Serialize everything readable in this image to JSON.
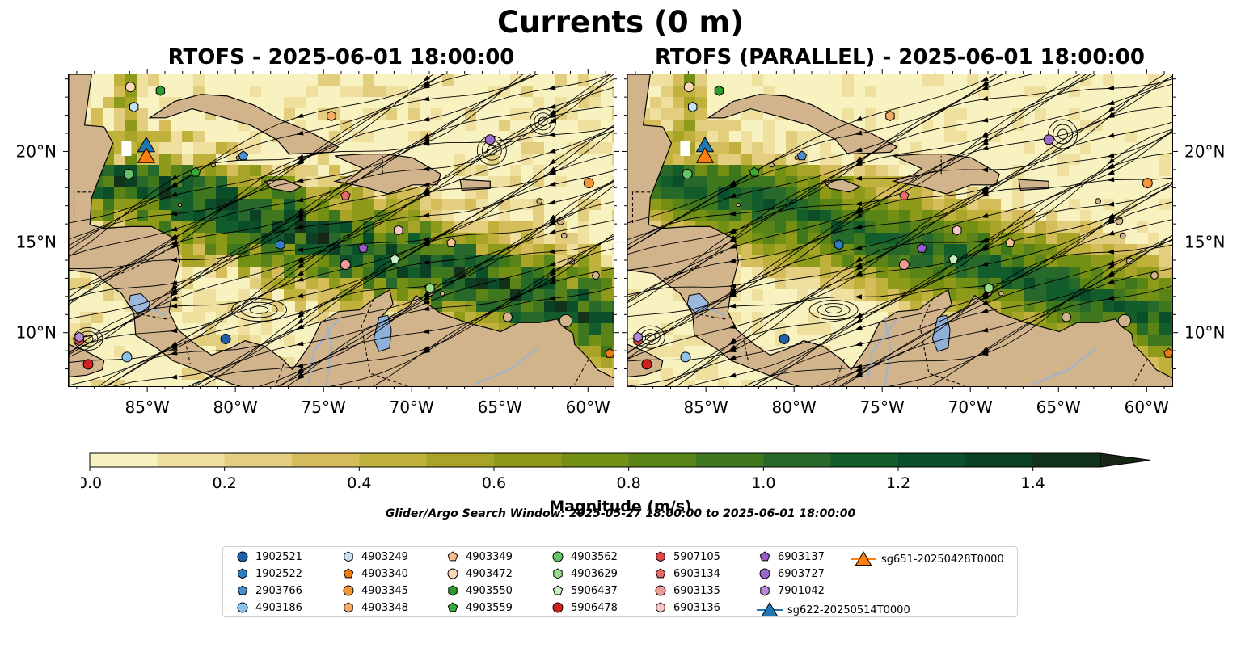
{
  "title": "Currents (0 m)",
  "panels": [
    {
      "title": "RTOFS - 2025-06-01 18:00:00"
    },
    {
      "title": "RTOFS (PARALLEL) - 2025-06-01 18:00:00"
    }
  ],
  "map": {
    "lon_range": [
      -89.5,
      -58.5
    ],
    "lat_range": [
      7.0,
      24.3
    ],
    "lon_ticks": [
      "85°W",
      "80°W",
      "75°W",
      "70°W",
      "65°W",
      "60°W"
    ],
    "lon_tick_values": [
      -85,
      -80,
      -75,
      -70,
      -65,
      -60
    ],
    "lat_ticks": [
      "20°N",
      "15°N",
      "10°N"
    ],
    "lat_tick_values": [
      20,
      15,
      10
    ]
  },
  "colorbar": {
    "label": "Magnitude (m/s)",
    "ticks": [
      "0.0",
      "0.2",
      "0.4",
      "0.6",
      "0.8",
      "1.0",
      "1.2",
      "1.4"
    ],
    "tick_values": [
      0.0,
      0.2,
      0.4,
      0.6,
      0.8,
      1.0,
      1.2,
      1.4
    ],
    "range": [
      0.0,
      1.5
    ],
    "extend": "max",
    "colors": [
      "#f8f1c0",
      "#efe0a0",
      "#e3ce7f",
      "#d4bd5a",
      "#c0b03c",
      "#a8a428",
      "#8e9a1a",
      "#739014",
      "#5a8418",
      "#3f771e",
      "#27692a",
      "#135c2c",
      "#0b4e2a",
      "#0c4024",
      "#12321c",
      "#182616"
    ]
  },
  "search_window": "Glider/Argo Search Window: 2025-05-27 18:00:00 to 2025-06-01 18:00:00",
  "legend": [
    {
      "label": "1902521",
      "marker": "circle",
      "color": "#1f5fa8"
    },
    {
      "label": "1902522",
      "marker": "hexagon",
      "color": "#2f7fc0"
    },
    {
      "label": "2903766",
      "marker": "pentagon",
      "color": "#4a90d0"
    },
    {
      "label": "4903186",
      "marker": "circle",
      "color": "#8cc2ea"
    },
    {
      "label": "4903249",
      "marker": "hexagon",
      "color": "#c6e2f7"
    },
    {
      "label": "4903340",
      "marker": "pentagon",
      "color": "#f07c10"
    },
    {
      "label": "4903345",
      "marker": "circle",
      "color": "#f4953a"
    },
    {
      "label": "4903348",
      "marker": "hexagon",
      "color": "#f6ab66"
    },
    {
      "label": "4903349",
      "marker": "pentagon",
      "color": "#f8c090"
    },
    {
      "label": "4903472",
      "marker": "circle",
      "color": "#fbd9b8"
    },
    {
      "label": "4903550",
      "marker": "hexagon",
      "color": "#2a9a2a"
    },
    {
      "label": "4903559",
      "marker": "pentagon",
      "color": "#3aaa3a"
    },
    {
      "label": "4903562",
      "marker": "circle",
      "color": "#66c266"
    },
    {
      "label": "4903629",
      "marker": "hexagon",
      "color": "#98dc8a"
    },
    {
      "label": "5906437",
      "marker": "pentagon",
      "color": "#c8f0c0"
    },
    {
      "label": "5906478",
      "marker": "circle",
      "color": "#d02020"
    },
    {
      "label": "5907105",
      "marker": "hexagon",
      "color": "#dc4848"
    },
    {
      "label": "6903134",
      "marker": "pentagon",
      "color": "#ea6a6a"
    },
    {
      "label": "6903135",
      "marker": "circle",
      "color": "#f09a98"
    },
    {
      "label": "6903136",
      "marker": "hexagon",
      "color": "#f8c4c8"
    },
    {
      "label": "6903137",
      "marker": "pentagon",
      "color": "#9c5cc8"
    },
    {
      "label": "6903727",
      "marker": "circle",
      "color": "#9a6ac8"
    },
    {
      "label": "7901042",
      "marker": "hexagon",
      "color": "#b88ad8"
    },
    {
      "label": "sg622-20250514T0000",
      "marker": "triangle",
      "color": "#1f77b4"
    },
    {
      "label": "sg651-20250428T0000",
      "marker": "triangle",
      "color": "#ff7f0e"
    }
  ],
  "floats": [
    {
      "id": "1902521",
      "lon": -80.6,
      "lat": 9.7,
      "lon2": -80.6,
      "lat2": 9.7
    },
    {
      "id": "1902522",
      "lon": -77.5,
      "lat": 14.9,
      "lon2": -77.5,
      "lat2": 14.9
    },
    {
      "id": "2903766",
      "lon": -79.6,
      "lat": 19.8,
      "lon2": -79.6,
      "lat2": 19.8
    },
    {
      "id": "4903186",
      "lon": -86.2,
      "lat": 8.7,
      "lon2": -86.2,
      "lat2": 8.7
    },
    {
      "id": "4903249",
      "lon": -85.8,
      "lat": 22.5,
      "lon2": -85.8,
      "lat2": 22.5
    },
    {
      "id": "4903340",
      "lon": -58.8,
      "lat": 8.9,
      "lon2": -58.8,
      "lat2": 8.9
    },
    {
      "id": "4903345",
      "lon": -60.0,
      "lat": 18.3,
      "lon2": -60.0,
      "lat2": 18.3
    },
    {
      "id": "4903348",
      "lon": -74.6,
      "lat": 22.0,
      "lon2": -74.6,
      "lat2": 22.0
    },
    {
      "id": "4903349",
      "lon": -67.8,
      "lat": 15.0,
      "lon2": -67.8,
      "lat2": 15.0
    },
    {
      "id": "4903472",
      "lon": -86.0,
      "lat": 23.6,
      "lon2": -86.0,
      "lat2": 23.6
    },
    {
      "id": "4903550",
      "lon": -84.3,
      "lat": 23.4,
      "lon2": -84.3,
      "lat2": 23.4
    },
    {
      "id": "4903559",
      "lon": -82.3,
      "lat": 18.9,
      "lon2": -82.3,
      "lat2": 18.9
    },
    {
      "id": "4903562",
      "lon": -86.1,
      "lat": 18.8,
      "lon2": -86.1,
      "lat2": 18.8
    },
    {
      "id": "4903629",
      "lon": -69.0,
      "lat": 12.5,
      "lon2": -69.0,
      "lat2": 12.5
    },
    {
      "id": "5906437",
      "lon": -71.0,
      "lat": 14.1,
      "lon2": -71.0,
      "lat2": 14.1
    },
    {
      "id": "5906478",
      "lon": -88.4,
      "lat": 8.3,
      "lon2": -88.4,
      "lat2": 8.3
    },
    {
      "id": "5907105",
      "lon": -88.9,
      "lat": 9.6,
      "lon2": -88.9,
      "lat2": 9.6
    },
    {
      "id": "6903134",
      "lon": -73.8,
      "lat": 17.6,
      "lon2": -73.8,
      "lat2": 17.6
    },
    {
      "id": "6903135",
      "lon": -73.8,
      "lat": 13.8,
      "lon2": -73.8,
      "lat2": 13.8
    },
    {
      "id": "6903136",
      "lon": -70.8,
      "lat": 15.7,
      "lon2": -70.8,
      "lat2": 15.7
    },
    {
      "id": "6903137",
      "lon": -72.8,
      "lat": 14.7,
      "lon2": -72.8,
      "lat2": 14.7
    },
    {
      "id": "6903727",
      "lon": -65.6,
      "lat": 20.7,
      "lon2": -65.6,
      "lat2": 20.7
    },
    {
      "id": "7901042",
      "lon": -88.9,
      "lat": 9.8,
      "lon2": -88.9,
      "lat2": 9.8
    }
  ],
  "gliders": [
    {
      "id": "sg622-20250514T0000",
      "lon": -85.1,
      "lat": 20.3
    },
    {
      "id": "sg651-20250428T0000",
      "lon": -85.1,
      "lat": 19.7
    }
  ]
}
